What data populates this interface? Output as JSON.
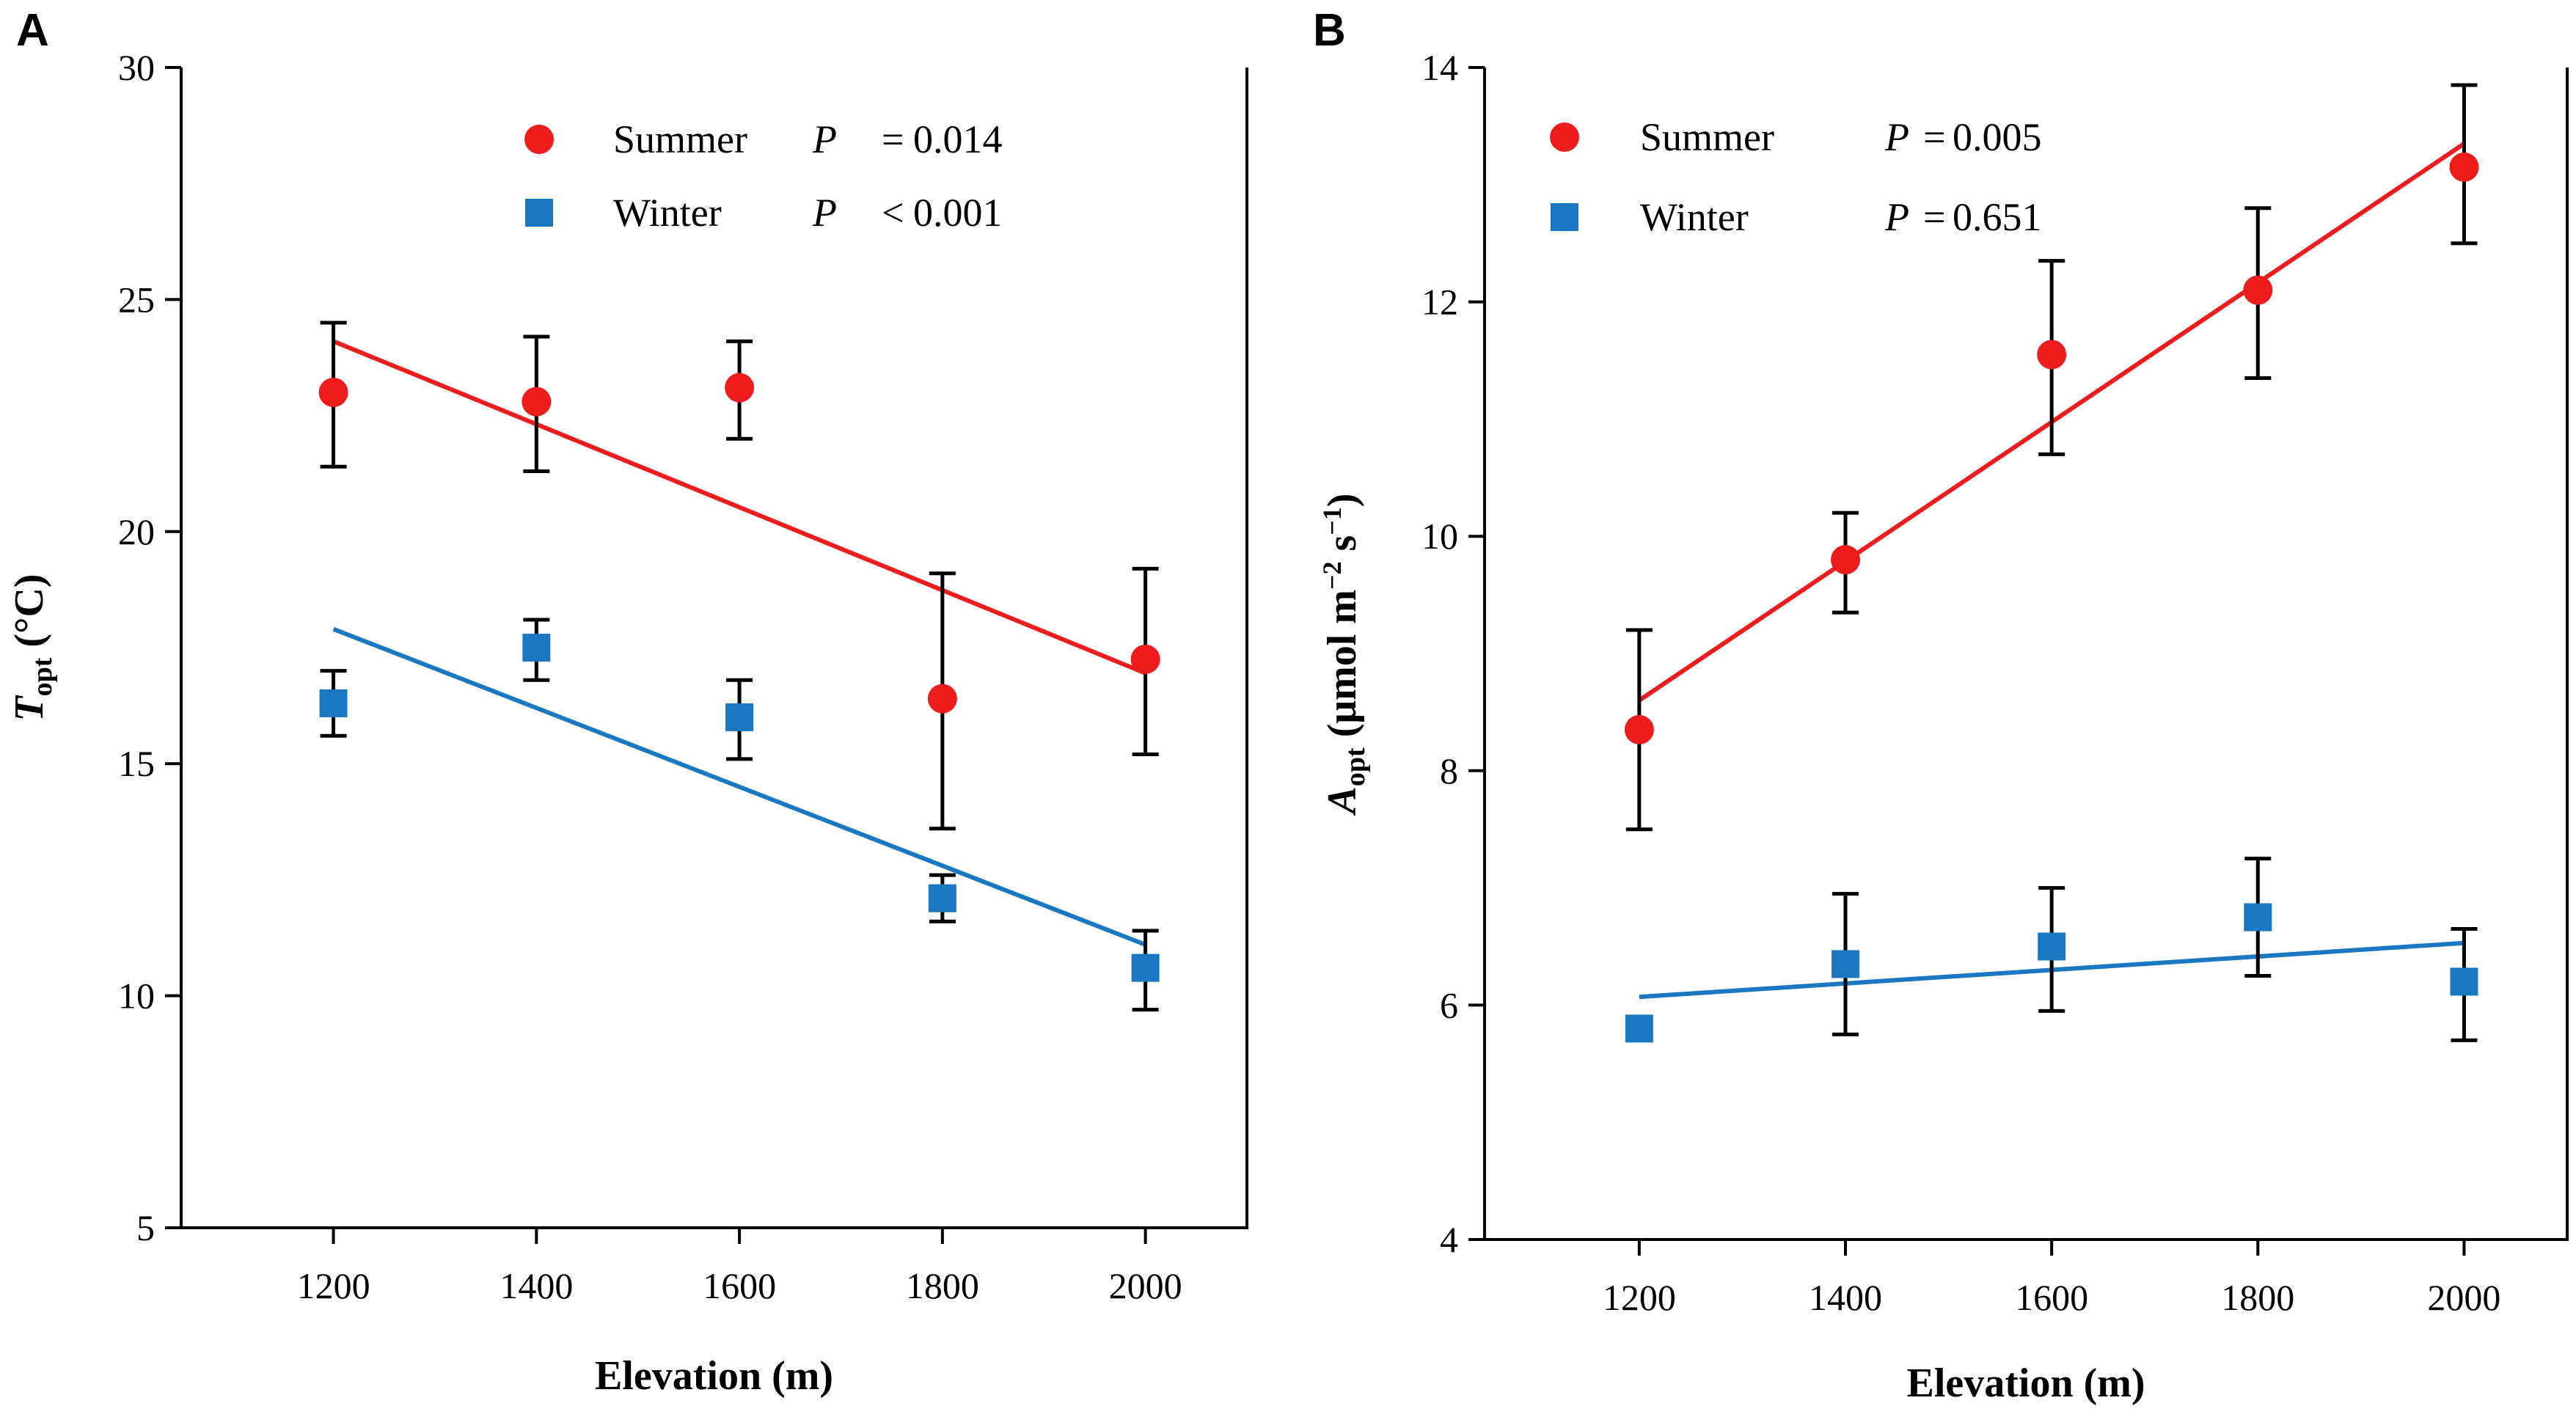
{
  "chart_data": [
    {
      "panel": "A",
      "type": "scatter",
      "xlabel": "Elevation (m)",
      "ylabel_main": "T",
      "ylabel_sub": "opt",
      "ylabel_rest": " (°C)",
      "x": [
        1200,
        1400,
        1600,
        1800,
        2000
      ],
      "xlim": [
        1050,
        2100
      ],
      "ylim": [
        5,
        30
      ],
      "xticks": [
        1200,
        1400,
        1600,
        1800,
        2000
      ],
      "yticks": [
        5,
        10,
        15,
        20,
        25,
        30
      ],
      "series": [
        {
          "name": "Summer",
          "marker": "circle",
          "color": "#ee1c1c",
          "values": [
            23.0,
            22.8,
            23.1,
            16.4,
            17.25
          ],
          "err_low": [
            21.4,
            21.3,
            22.0,
            13.6,
            15.2
          ],
          "err_high": [
            24.5,
            24.2,
            24.1,
            19.1,
            19.2
          ],
          "fit": [
            24.1,
            16.95
          ],
          "p_label": "P",
          "p_op": "=",
          "p_value": "0.014"
        },
        {
          "name": "Winter",
          "marker": "square",
          "color": "#1a78c2",
          "values": [
            16.3,
            17.5,
            16.0,
            12.1,
            10.6
          ],
          "err_low": [
            15.6,
            16.8,
            15.1,
            11.6,
            9.7
          ],
          "err_high": [
            17.0,
            18.1,
            16.8,
            12.6,
            11.4
          ],
          "fit": [
            17.9,
            11.1
          ],
          "p_label": "P",
          "p_op": "<",
          "p_value": "0.001"
        }
      ]
    },
    {
      "panel": "B",
      "type": "scatter",
      "xlabel": "Elevation (m)",
      "ylabel_main": "A",
      "ylabel_sub": "opt",
      "ylabel_rest": " (μmol m",
      "ylabel_sup1": "−2",
      "ylabel_mid": " s",
      "ylabel_sup2": "−1",
      "ylabel_end": ")",
      "x": [
        1200,
        1400,
        1600,
        1800,
        2000
      ],
      "xlim": [
        1050,
        2100
      ],
      "ylim": [
        4,
        14
      ],
      "xticks": [
        1200,
        1400,
        1600,
        1800,
        2000
      ],
      "yticks": [
        4,
        6,
        8,
        10,
        12,
        14
      ],
      "series": [
        {
          "name": "Summer",
          "marker": "circle",
          "color": "#ee1c1c",
          "values": [
            8.35,
            9.8,
            11.55,
            12.1,
            13.15
          ],
          "err_low": [
            7.5,
            9.35,
            10.7,
            11.35,
            12.5
          ],
          "err_high": [
            9.2,
            10.2,
            12.35,
            12.8,
            13.85
          ],
          "fit": [
            8.6,
            13.35
          ],
          "p_label": "P",
          "p_op": "=",
          "p_value": "0.005"
        },
        {
          "name": "Winter",
          "marker": "square",
          "color": "#1a78c2",
          "values": [
            5.8,
            6.35,
            6.5,
            6.75,
            6.2
          ],
          "err_low": [
            5.75,
            5.75,
            5.95,
            6.25,
            5.7
          ],
          "err_high": [
            5.85,
            6.95,
            7.0,
            7.25,
            6.65
          ],
          "fit": [
            6.07,
            6.53
          ],
          "p_label": "P",
          "p_op": "=",
          "p_value": "0.651"
        }
      ]
    }
  ]
}
